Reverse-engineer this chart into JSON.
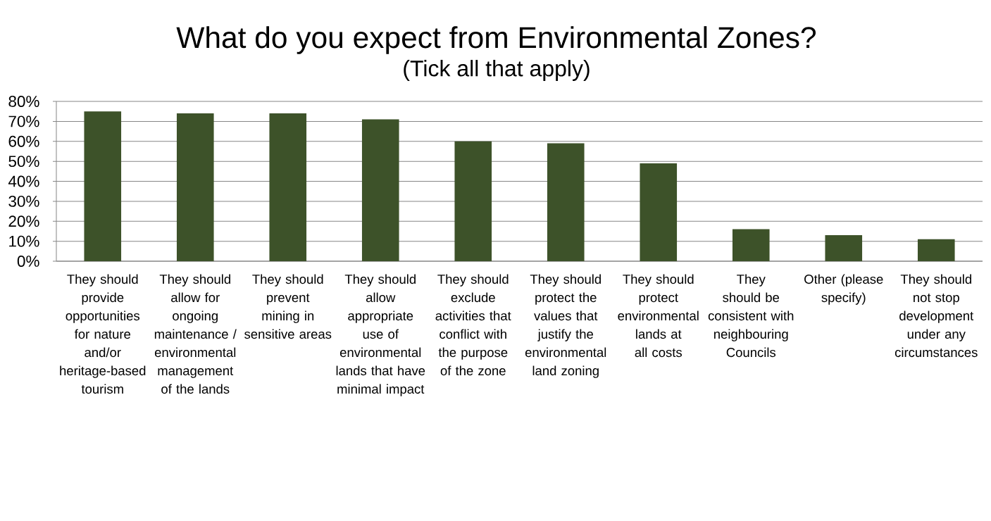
{
  "chart_data": {
    "type": "bar",
    "title": "What do you expect from Environmental Zones?",
    "subtitle": "(Tick all that apply)",
    "categories": [
      "They should provide opportunities for nature and/or heritage-based tourism",
      "They should allow for ongoing maintenance / environmental management of the lands",
      "They should prevent mining in sensitive areas",
      "They should allow appropriate use of environmental lands that have minimal impact",
      "They should exclude activities that conflict with the purpose of the zone",
      "They should protect the values that justify the environmental land zoning",
      "They should protect environmental lands at all costs",
      "They should be consistent with neighbouring Councils",
      "Other (please specify)",
      "They should not stop development under any circumstances"
    ],
    "values": [
      75,
      74,
      74,
      71,
      60,
      59,
      49,
      16,
      13,
      11
    ],
    "color": "#3d5229",
    "ylim": [
      0,
      80
    ],
    "yticks": [
      {
        "value": 0,
        "label": "0%"
      },
      {
        "value": 10,
        "label": "10%"
      },
      {
        "value": 20,
        "label": "20%"
      },
      {
        "value": 30,
        "label": "30%"
      },
      {
        "value": 40,
        "label": "40%"
      },
      {
        "value": 50,
        "label": "50%"
      },
      {
        "value": 60,
        "label": "60%"
      },
      {
        "value": 70,
        "label": "70%"
      },
      {
        "value": 80,
        "label": "80%"
      }
    ],
    "grid": "y"
  }
}
